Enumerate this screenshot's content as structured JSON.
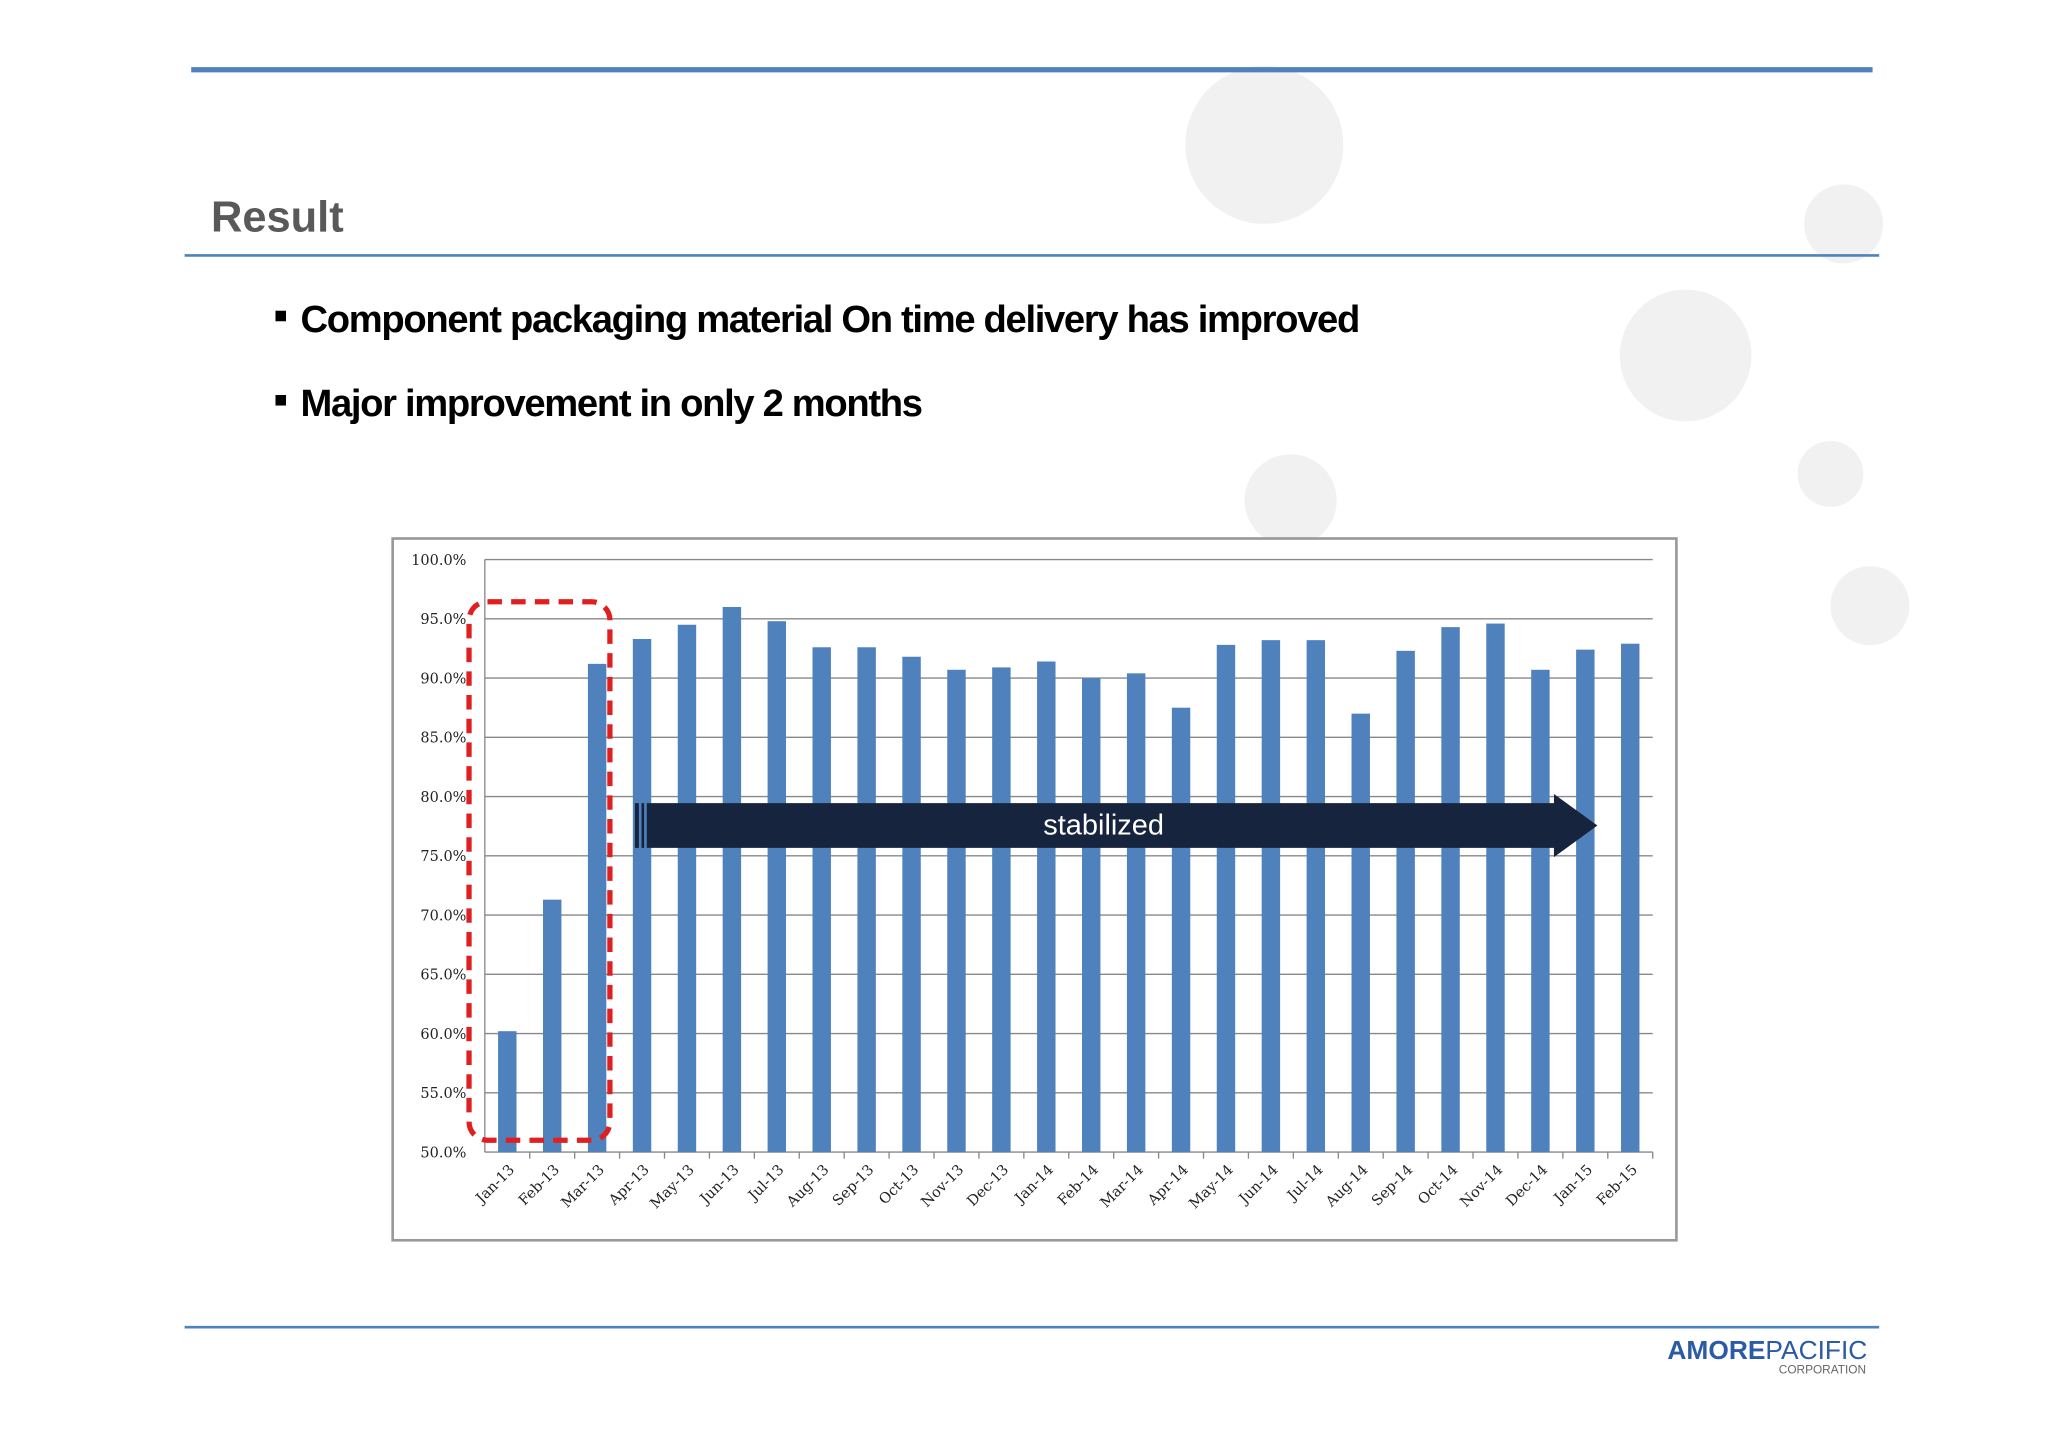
{
  "header": {
    "title": "Result"
  },
  "bullets": [
    "Component packaging material On time delivery has improved",
    "Major improvement in only  2 months"
  ],
  "chart_data": {
    "type": "bar",
    "categories": [
      "Jan-13",
      "Feb-13",
      "Mar-13",
      "Apr-13",
      "May-13",
      "Jun-13",
      "Jul-13",
      "Aug-13",
      "Sep-13",
      "Oct-13",
      "Nov-13",
      "Dec-13",
      "Jan-14",
      "Feb-14",
      "Mar-14",
      "Apr-14",
      "May-14",
      "Jun-14",
      "Jul-14",
      "Aug-14",
      "Sep-14",
      "Oct-14",
      "Nov-14",
      "Dec-14",
      "Jan-15",
      "Feb-15"
    ],
    "values": [
      60.2,
      71.3,
      91.2,
      93.3,
      94.5,
      96.0,
      94.8,
      92.6,
      92.6,
      91.8,
      90.7,
      90.9,
      91.4,
      90.0,
      90.4,
      87.5,
      92.8,
      93.2,
      93.2,
      87.0,
      92.3,
      94.3,
      94.6,
      90.7,
      92.4,
      92.9
    ],
    "color": "#4f81bd",
    "ylim": [
      50,
      100
    ],
    "yticks": [
      {
        "value": 50,
        "label": "50.0%"
      },
      {
        "value": 55,
        "label": "55.0%"
      },
      {
        "value": 60,
        "label": "60.0%"
      },
      {
        "value": 65,
        "label": "65.0%"
      },
      {
        "value": 70,
        "label": "70.0%"
      },
      {
        "value": 75,
        "label": "75.0%"
      },
      {
        "value": 80,
        "label": "80.0%"
      },
      {
        "value": 85,
        "label": "85.0%"
      },
      {
        "value": 90,
        "label": "90.0%"
      },
      {
        "value": 95,
        "label": "95.0%"
      },
      {
        "value": 100,
        "label": "100.0%"
      }
    ],
    "grid": true,
    "annotation": "stabilized"
  },
  "logo": {
    "brand": "AMORE",
    "brand2": "PACIFIC",
    "sub": "CORPORATION"
  }
}
